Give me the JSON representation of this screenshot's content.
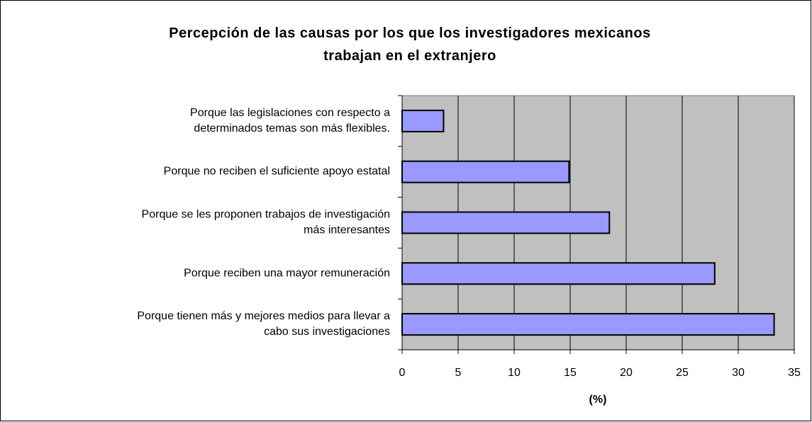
{
  "chart_data": {
    "type": "bar",
    "orientation": "horizontal",
    "title": "Percepción de las causas por los que los investigadores mexicanos\ntrabajan en el extranjero",
    "categories": [
      "Porque las legislaciones con respecto a\ndeterminados temas son más flexibles.",
      "Porque no reciben el suficiente apoyo estatal",
      "Porque se les proponen trabajos de investigación\nmás interesantes",
      "Porque reciben una mayor remuneración",
      "Porque tienen más y mejores medios para llevar a\ncabo sus investigaciones"
    ],
    "values": [
      3.7,
      14.9,
      18.5,
      27.9,
      33.2
    ],
    "color": "#9999ff",
    "xlabel": "(%)",
    "xlim": [
      0,
      35
    ],
    "xticks": [
      0,
      5,
      10,
      15,
      20,
      25,
      30,
      35
    ],
    "grid": true
  }
}
